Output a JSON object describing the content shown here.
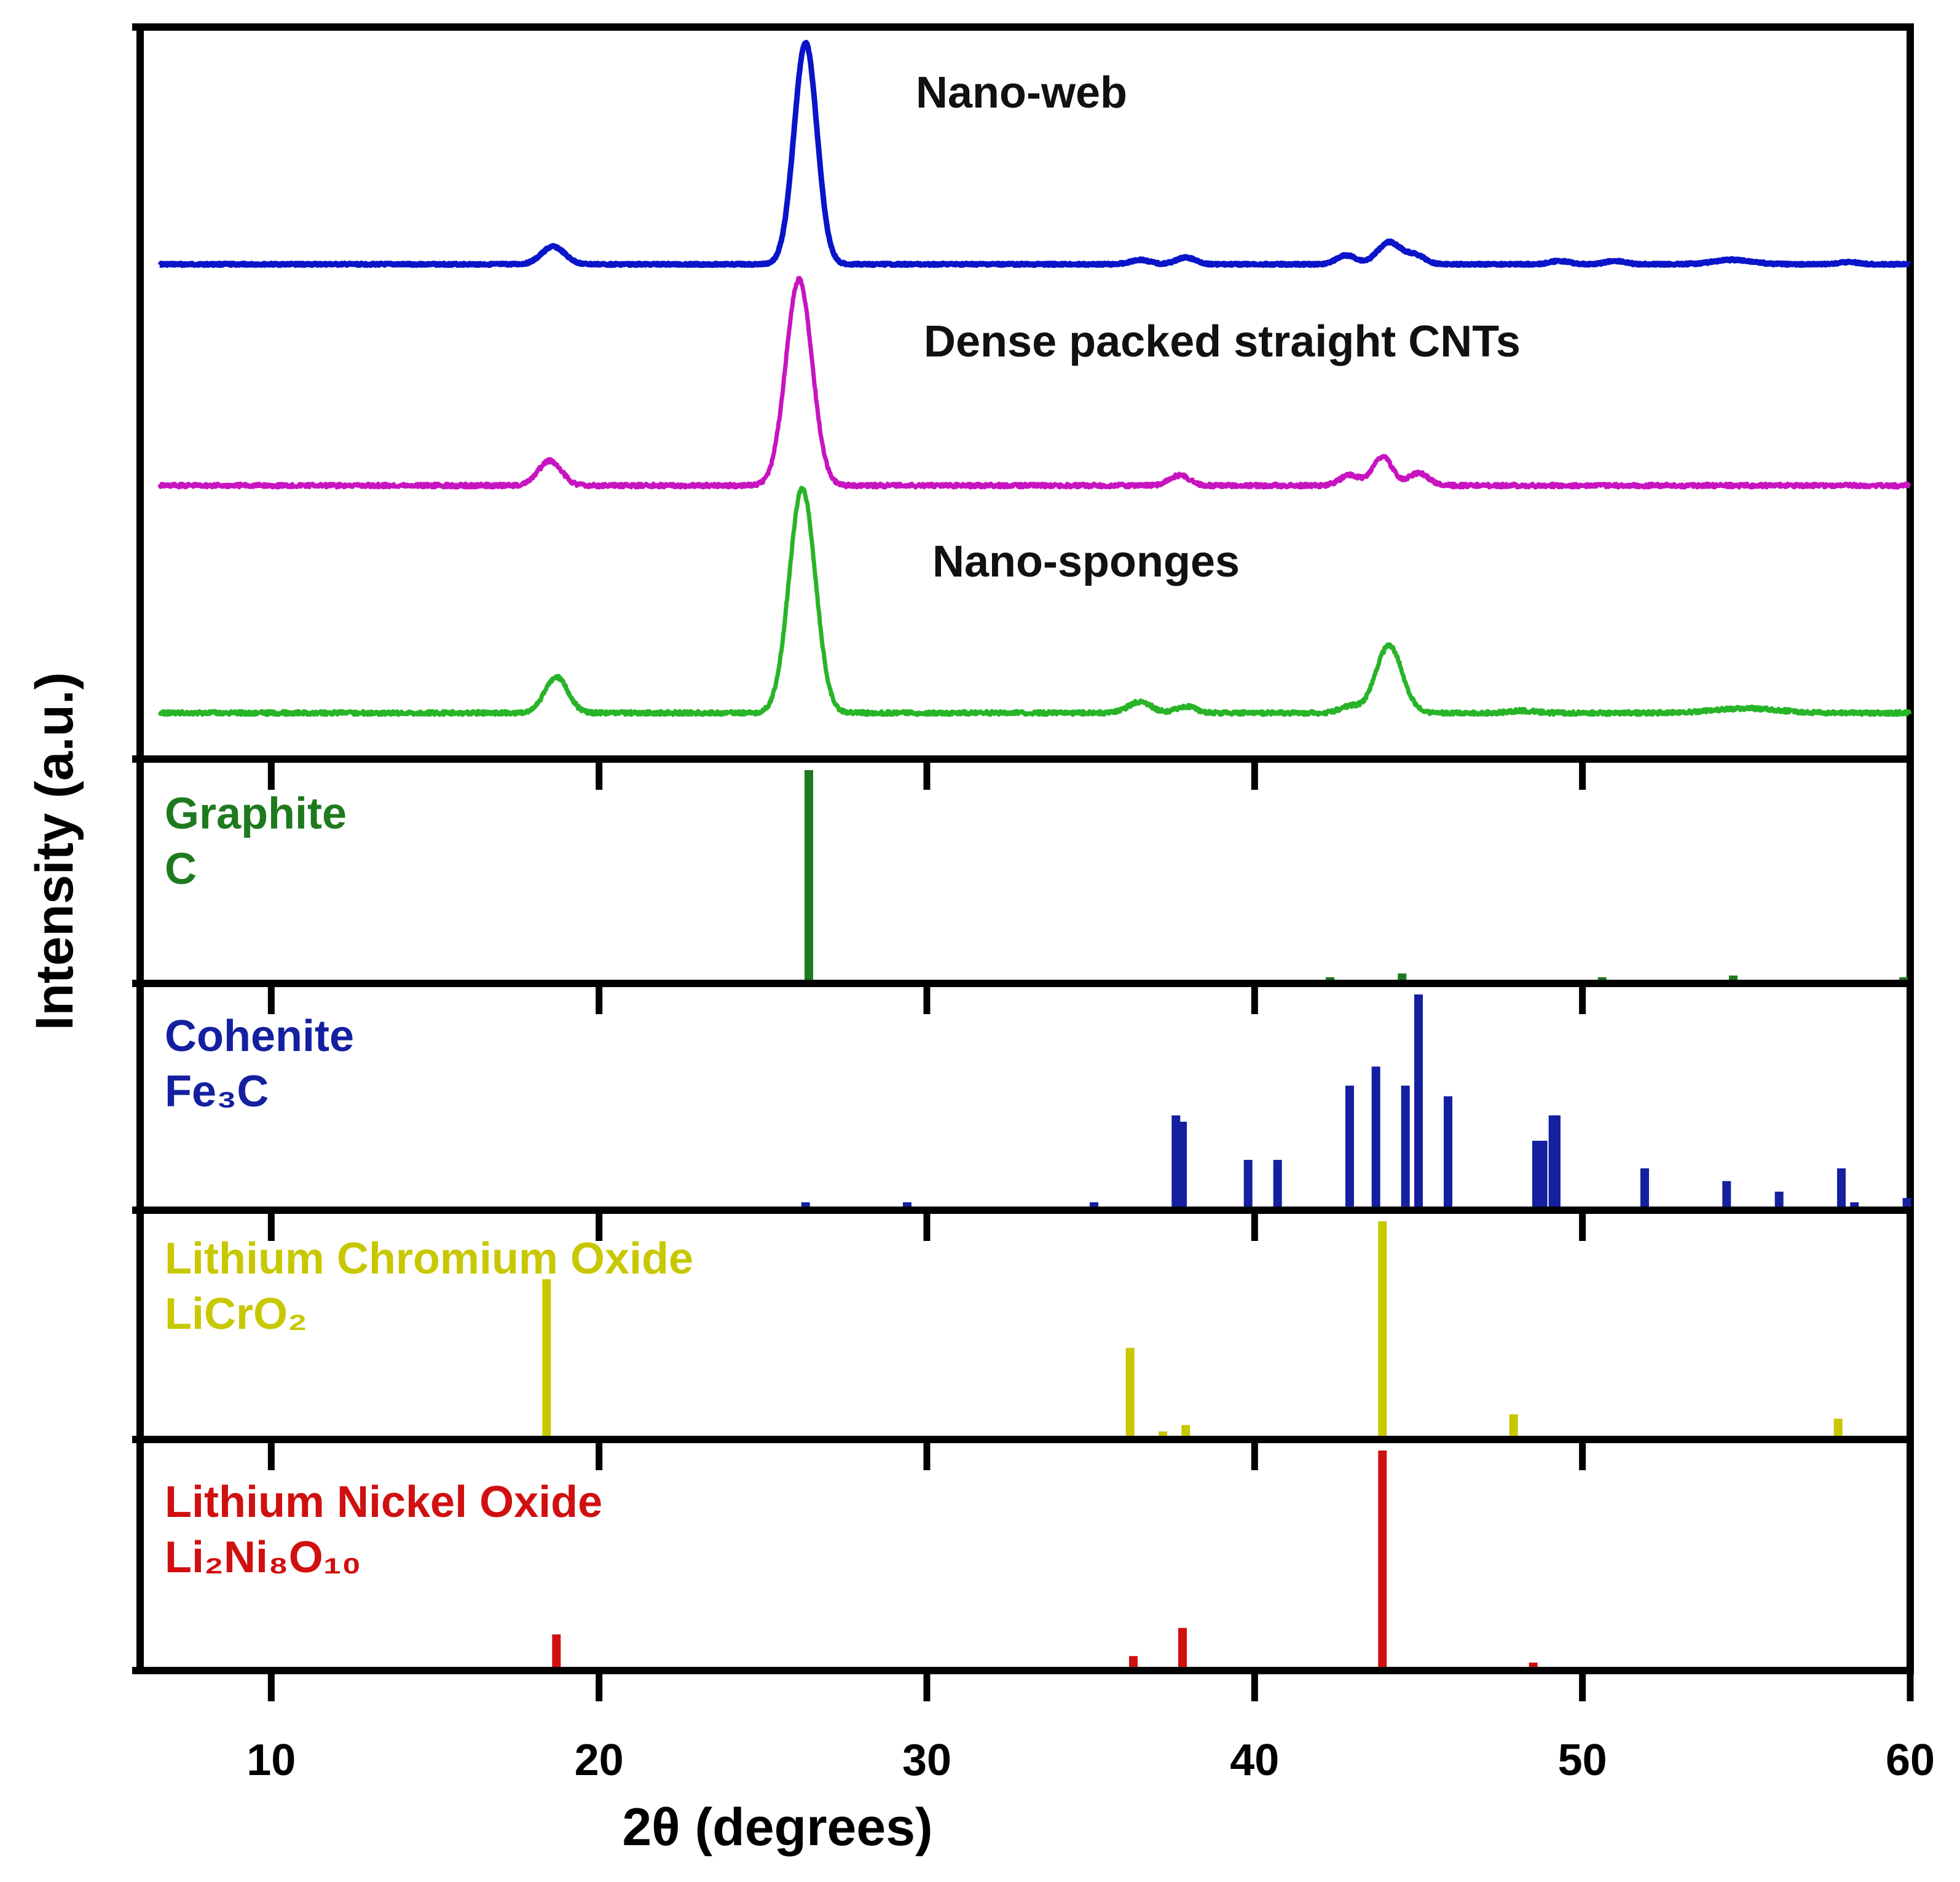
{
  "chart_data": {
    "type": "line",
    "title": "",
    "xlabel": "2θ (degrees)",
    "ylabel": "Intensity (a.u.)",
    "xlim": [
      6,
      60
    ],
    "x_ticks": [
      10,
      20,
      30,
      40,
      50,
      60
    ],
    "x_tick_labels": [
      "10",
      "20",
      "30",
      "40",
      "50",
      "60"
    ],
    "grid": false,
    "legend": "none",
    "samples": [
      {
        "name": "Nano-web",
        "color": "#0A14C8",
        "peaks": [
          {
            "x": 18.6,
            "y": 0.08,
            "w": 0.35
          },
          {
            "x": 26.3,
            "y": 1.0,
            "w": 0.35
          },
          {
            "x": 36.5,
            "y": 0.02,
            "w": 0.3
          },
          {
            "x": 37.9,
            "y": 0.03,
            "w": 0.3
          },
          {
            "x": 42.8,
            "y": 0.04,
            "w": 0.3
          },
          {
            "x": 44.1,
            "y": 0.1,
            "w": 0.35
          },
          {
            "x": 44.9,
            "y": 0.04,
            "w": 0.3
          },
          {
            "x": 49.3,
            "y": 0.015,
            "w": 0.3
          },
          {
            "x": 51.0,
            "y": 0.015,
            "w": 0.3
          },
          {
            "x": 54.6,
            "y": 0.02,
            "w": 0.6
          },
          {
            "x": 58.1,
            "y": 0.01,
            "w": 0.3
          }
        ]
      },
      {
        "name": "Dense packed straight CNTs",
        "color": "#C814C0",
        "peaks": [
          {
            "x": 18.5,
            "y": 0.12,
            "w": 0.35
          },
          {
            "x": 26.1,
            "y": 1.0,
            "w": 0.4
          },
          {
            "x": 37.7,
            "y": 0.05,
            "w": 0.3
          },
          {
            "x": 42.9,
            "y": 0.05,
            "w": 0.3
          },
          {
            "x": 43.9,
            "y": 0.14,
            "w": 0.3
          },
          {
            "x": 45.0,
            "y": 0.06,
            "w": 0.3
          }
        ]
      },
      {
        "name": "Nano-sponges",
        "color": "#28B428",
        "peaks": [
          {
            "x": 18.7,
            "y": 0.16,
            "w": 0.35
          },
          {
            "x": 26.2,
            "y": 1.0,
            "w": 0.4
          },
          {
            "x": 36.5,
            "y": 0.05,
            "w": 0.35
          },
          {
            "x": 37.9,
            "y": 0.03,
            "w": 0.3
          },
          {
            "x": 42.9,
            "y": 0.03,
            "w": 0.3
          },
          {
            "x": 44.1,
            "y": 0.3,
            "w": 0.4
          },
          {
            "x": 48.2,
            "y": 0.01,
            "w": 0.4
          },
          {
            "x": 55.0,
            "y": 0.02,
            "w": 1.0
          }
        ]
      }
    ],
    "references": [
      {
        "name": "Graphite",
        "formula": "C",
        "color": "#1E7A1E",
        "sticks": [
          {
            "x": 26.4,
            "y": 1.0
          },
          {
            "x": 42.3,
            "y": 0.012
          },
          {
            "x": 44.5,
            "y": 0.03
          },
          {
            "x": 50.6,
            "y": 0.012
          },
          {
            "x": 54.6,
            "y": 0.02
          },
          {
            "x": 59.8,
            "y": 0.012
          }
        ]
      },
      {
        "name": "Cohenite",
        "formula": "Fe₃C",
        "color": "#1420A0",
        "sticks": [
          {
            "x": 26.3,
            "y": 0.02
          },
          {
            "x": 29.4,
            "y": 0.02
          },
          {
            "x": 35.1,
            "y": 0.02
          },
          {
            "x": 37.6,
            "y": 0.43
          },
          {
            "x": 37.8,
            "y": 0.4
          },
          {
            "x": 39.8,
            "y": 0.22
          },
          {
            "x": 40.7,
            "y": 0.22
          },
          {
            "x": 42.9,
            "y": 0.57
          },
          {
            "x": 43.7,
            "y": 0.66
          },
          {
            "x": 44.6,
            "y": 0.57
          },
          {
            "x": 45.0,
            "y": 1.0
          },
          {
            "x": 45.9,
            "y": 0.52
          },
          {
            "x": 48.6,
            "y": 0.31
          },
          {
            "x": 48.8,
            "y": 0.31
          },
          {
            "x": 49.1,
            "y": 0.43
          },
          {
            "x": 49.2,
            "y": 0.43
          },
          {
            "x": 51.9,
            "y": 0.18
          },
          {
            "x": 54.4,
            "y": 0.12
          },
          {
            "x": 56.0,
            "y": 0.07
          },
          {
            "x": 57.9,
            "y": 0.18
          },
          {
            "x": 58.3,
            "y": 0.02
          },
          {
            "x": 59.9,
            "y": 0.04
          }
        ]
      },
      {
        "name": "Lithium Chromium Oxide",
        "formula": "LiCrO₂",
        "color": "#C8C800",
        "sticks": [
          {
            "x": 18.4,
            "y": 0.73
          },
          {
            "x": 36.2,
            "y": 0.41
          },
          {
            "x": 37.2,
            "y": 0.02
          },
          {
            "x": 37.9,
            "y": 0.05
          },
          {
            "x": 43.9,
            "y": 1.0
          },
          {
            "x": 47.9,
            "y": 0.1
          },
          {
            "x": 57.8,
            "y": 0.08
          }
        ]
      },
      {
        "name": "Lithium Nickel Oxide",
        "formula": "Li₂Ni₈O₁₀",
        "color": "#D01010",
        "sticks": [
          {
            "x": 18.7,
            "y": 0.15
          },
          {
            "x": 36.3,
            "y": 0.05
          },
          {
            "x": 37.8,
            "y": 0.18
          },
          {
            "x": 43.9,
            "y": 1.0
          },
          {
            "x": 48.5,
            "y": 0.02
          }
        ]
      }
    ]
  }
}
